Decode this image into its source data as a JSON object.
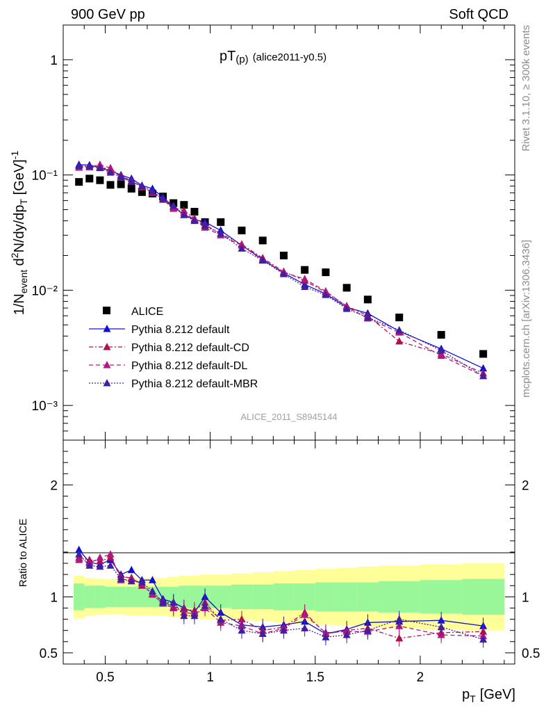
{
  "header": {
    "left": "900 GeV pp",
    "right": "Soft QCD"
  },
  "side_labels": {
    "top": "Rivet 3.1.10, ≥ 300k events",
    "bottom": "mcplots.cern.ch [arXiv:1306.3436]"
  },
  "colors": {
    "alice": "#000000",
    "default": "#1010d0",
    "cd": "#b01050",
    "dl": "#b01880",
    "mbr": "#4020a0",
    "band_inner": "#99f799",
    "band_outer": "#ffff99"
  },
  "chart_data": [
    {
      "type": "scatter",
      "panel": "main",
      "title": "pT(p) (alice2011-y0.5)",
      "title_main": "pT",
      "title_sub": "(p)",
      "title_rest": "(alice2011-y0.5)",
      "watermark": "ALICE_2011_S8945144",
      "ylabel": "1/N_event d2N/dy/dp_T [GeV]^-1",
      "yscale": "log",
      "ylim": [
        0.0005,
        2.0
      ],
      "xlim": [
        0.3,
        2.45
      ],
      "ytick_labels": [
        "1",
        "10⁻¹",
        "10⁻²",
        "10⁻³"
      ],
      "legend_position": "bottom-left",
      "x": [
        0.375,
        0.425,
        0.475,
        0.525,
        0.575,
        0.625,
        0.675,
        0.725,
        0.775,
        0.825,
        0.875,
        0.925,
        0.975,
        1.05,
        1.15,
        1.25,
        1.35,
        1.45,
        1.55,
        1.65,
        1.75,
        1.9,
        2.1,
        2.3
      ],
      "series": [
        {
          "name": "ALICE",
          "style": "square",
          "values": [
            0.087,
            0.093,
            0.09,
            0.082,
            0.083,
            0.076,
            0.071,
            0.069,
            0.065,
            0.057,
            0.055,
            0.048,
            0.039,
            0.039,
            0.033,
            0.027,
            0.02,
            0.015,
            0.0143,
            0.0105,
            0.0083,
            0.0058,
            0.0041,
            0.0028
          ]
        },
        {
          "name": "Pythia 8.212 default",
          "style": "line-solid",
          "values": [
            0.123,
            0.122,
            0.116,
            0.109,
            0.1,
            0.093,
            0.081,
            0.076,
            0.064,
            0.053,
            0.045,
            0.041,
            0.039,
            0.033,
            0.0245,
            0.0185,
            0.0141,
            0.0112,
            0.0093,
            0.0071,
            0.0063,
            0.0044,
            0.0031,
            0.0021
          ]
        },
        {
          "name": "Pythia 8.212 default-CD",
          "style": "line-dashdot",
          "values": [
            0.117,
            0.118,
            0.119,
            0.11,
            0.098,
            0.089,
            0.078,
            0.071,
            0.062,
            0.052,
            0.049,
            0.042,
            0.037,
            0.031,
            0.025,
            0.019,
            0.0145,
            0.0121,
            0.0096,
            0.0073,
            0.006,
            0.0036,
            0.0028,
            0.0019
          ]
        },
        {
          "name": "Pythia 8.212 default-DL",
          "style": "line-dashed",
          "values": [
            0.116,
            0.117,
            0.123,
            0.115,
            0.095,
            0.088,
            0.08,
            0.07,
            0.061,
            0.051,
            0.047,
            0.041,
            0.035,
            0.03,
            0.0245,
            0.0182,
            0.0143,
            0.0125,
            0.0098,
            0.0072,
            0.0057,
            0.0043,
            0.0027,
            0.0018
          ]
        },
        {
          "name": "Pythia 8.212 default-MBR",
          "style": "line-dotted",
          "values": [
            0.12,
            0.119,
            0.115,
            0.105,
            0.096,
            0.087,
            0.08,
            0.072,
            0.062,
            0.054,
            0.045,
            0.04,
            0.036,
            0.031,
            0.023,
            0.0181,
            0.0138,
            0.0107,
            0.0091,
            0.0069,
            0.0058,
            0.0045,
            0.003,
            0.0018
          ]
        }
      ]
    },
    {
      "type": "scatter",
      "panel": "ratio",
      "ylabel": "Ratio to ALICE",
      "ylim": [
        0.4,
        2.4
      ],
      "xlim": [
        0.3,
        2.45
      ],
      "xlabel": "p_T [GeV]",
      "xlabel_main": "p",
      "xlabel_sub": "T",
      "xlabel_rest": "[GeV]",
      "xtick_labels": [
        "0.5",
        "1",
        "1.5",
        "2"
      ],
      "ytick_labels": [
        "0.5",
        "1",
        "2"
      ],
      "band_edges": [
        0.35,
        0.4,
        0.45,
        0.5,
        0.55,
        0.6,
        0.65,
        0.7,
        0.75,
        0.8,
        0.85,
        0.9,
        0.95,
        1.0,
        1.1,
        1.2,
        1.3,
        1.4,
        1.5,
        1.6,
        1.7,
        1.8,
        2.0,
        2.2,
        2.4
      ],
      "band_inner": [
        0.12,
        0.1,
        0.1,
        0.09,
        0.09,
        0.09,
        0.09,
        0.09,
        0.09,
        0.09,
        0.1,
        0.1,
        0.1,
        0.1,
        0.11,
        0.11,
        0.12,
        0.12,
        0.13,
        0.13,
        0.13,
        0.14,
        0.15,
        0.16
      ],
      "band_outer": [
        0.19,
        0.17,
        0.16,
        0.16,
        0.16,
        0.17,
        0.17,
        0.17,
        0.17,
        0.18,
        0.19,
        0.19,
        0.2,
        0.2,
        0.21,
        0.22,
        0.23,
        0.24,
        0.25,
        0.26,
        0.27,
        0.28,
        0.29,
        0.3
      ],
      "x": [
        0.375,
        0.425,
        0.475,
        0.525,
        0.575,
        0.625,
        0.675,
        0.725,
        0.775,
        0.825,
        0.875,
        0.925,
        0.975,
        1.05,
        1.15,
        1.25,
        1.35,
        1.45,
        1.55,
        1.65,
        1.75,
        1.9,
        2.1,
        2.3
      ],
      "series": [
        {
          "name": "Pythia 8.212 default",
          "style": "line-solid",
          "values": [
            1.42,
            1.31,
            1.29,
            1.33,
            1.2,
            1.24,
            1.15,
            1.15,
            0.98,
            0.95,
            0.9,
            0.86,
            1.0,
            0.86,
            0.75,
            0.73,
            0.75,
            0.78,
            0.67,
            0.71,
            0.77,
            0.78,
            0.79,
            0.74
          ]
        },
        {
          "name": "Pythia 8.212 default-CD",
          "style": "line-dashdot",
          "values": [
            1.35,
            1.33,
            1.32,
            1.35,
            1.18,
            1.17,
            1.1,
            1.03,
            0.96,
            0.91,
            0.89,
            0.88,
            0.95,
            0.79,
            0.8,
            0.7,
            0.73,
            0.86,
            0.67,
            0.7,
            0.72,
            0.63,
            0.68,
            0.69
          ]
        },
        {
          "name": "Pythia 8.212 default-DL",
          "style": "line-dashed",
          "values": [
            1.33,
            1.3,
            1.35,
            1.38,
            1.15,
            1.16,
            1.12,
            1.02,
            0.94,
            0.9,
            0.86,
            0.85,
            0.9,
            0.77,
            0.74,
            0.67,
            0.72,
            0.84,
            0.68,
            0.69,
            0.69,
            0.74,
            0.66,
            0.65
          ]
        },
        {
          "name": "Pythia 8.212 default-MBR",
          "style": "line-dotted",
          "values": [
            1.38,
            1.28,
            1.27,
            1.28,
            1.16,
            1.14,
            1.13,
            1.05,
            0.95,
            0.95,
            0.83,
            0.83,
            0.92,
            0.8,
            0.7,
            0.67,
            0.7,
            0.72,
            0.64,
            0.66,
            0.7,
            0.8,
            0.73,
            0.62
          ]
        }
      ]
    }
  ]
}
